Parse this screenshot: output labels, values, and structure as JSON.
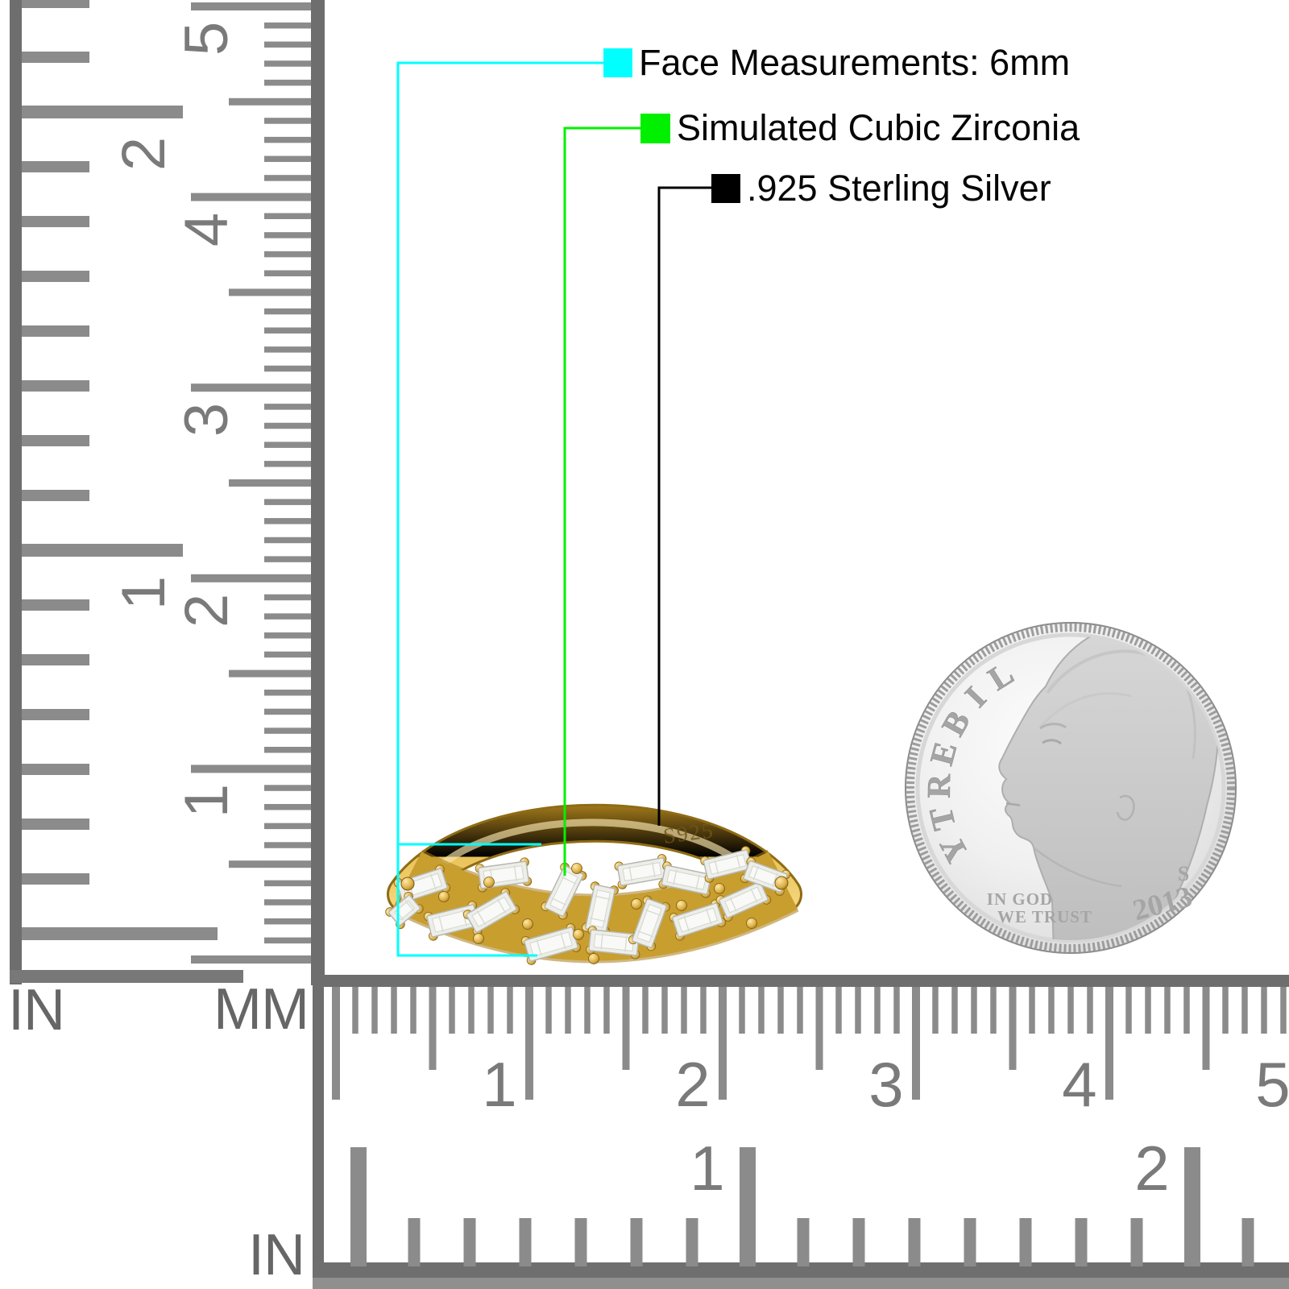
{
  "annotations": {
    "items": [
      {
        "label": "Face Measurements: 6mm",
        "color": "#00FFFF"
      },
      {
        "label": "Simulated Cubic Zirconia",
        "color": "#00F000"
      },
      {
        "label": ".925 Sterling Silver",
        "color": "#000000"
      }
    ]
  },
  "ring": {
    "stamp": "S925",
    "band_color": "#D4A233",
    "stone_color": "#F2F3F0"
  },
  "coin": {
    "legend": "LIBERTY",
    "motto": [
      "IN GOD",
      "WE TRUST"
    ],
    "mint_mark": "S",
    "year": "2013"
  },
  "rulers": {
    "left_inch": {
      "unit": "IN",
      "numbers": [
        "2",
        "1"
      ]
    },
    "left_mm": {
      "unit": "MM",
      "numbers": [
        "5",
        "4",
        "3",
        "2",
        "1"
      ]
    },
    "bottom_mm": {
      "numbers": [
        "1",
        "2",
        "3",
        "4",
        "5"
      ]
    },
    "bottom_inch": {
      "unit": "IN",
      "numbers": [
        "1",
        "2"
      ]
    },
    "tick_color": "#8B8B8B",
    "edge_color": "#6E6E6E",
    "number_color": "#7A7A7A"
  }
}
